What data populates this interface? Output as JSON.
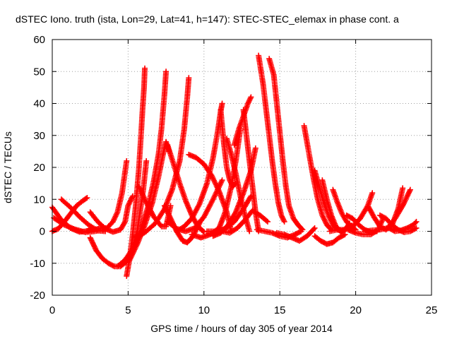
{
  "chart_data": {
    "type": "scatter",
    "title": "dSTEC Iono. truth (ista, Lon=29, Lat=41, h=147): STEC-STEC_elemax in phase cont. a",
    "xlabel": "GPS time / hours of day 305 of year 2014",
    "ylabel": "dSTEC  / TECUs",
    "xlim": [
      0,
      25
    ],
    "ylim": [
      -20,
      60
    ],
    "xticks": [
      0,
      5,
      10,
      15,
      20,
      25
    ],
    "yticks": [
      -20,
      -10,
      0,
      10,
      20,
      30,
      40,
      50,
      60
    ],
    "grid": true,
    "marker": "+",
    "color": "#ff0000",
    "series": [
      {
        "x": [
          0.0,
          0.6,
          1.2,
          1.8,
          2.2,
          2.6
        ],
        "y": [
          7.5,
          3.5,
          1.0,
          -0.2,
          0.0,
          0.5
        ]
      },
      {
        "x": [
          0.1,
          0.8,
          1.5,
          2.2,
          2.8,
          3.4
        ],
        "y": [
          4.2,
          2.0,
          0.6,
          -0.3,
          0.0,
          0.5
        ]
      },
      {
        "x": [
          0.0,
          0.4,
          0.8,
          1.2,
          1.6,
          2.0,
          2.3
        ],
        "y": [
          0.0,
          0.8,
          3.0,
          5.5,
          8.0,
          9.5,
          10.5
        ]
      },
      {
        "x": [
          0.6,
          1.2,
          1.8,
          2.4,
          3.0,
          3.5
        ],
        "y": [
          10.0,
          7.5,
          4.5,
          2.0,
          0.2,
          0.0
        ]
      },
      {
        "x": [
          2.5,
          3.0,
          3.5,
          4.0,
          4.5,
          4.8,
          5.0,
          5.3
        ],
        "y": [
          6.0,
          3.0,
          0.8,
          -0.2,
          0.5,
          3.0,
          8.0,
          11.0
        ]
      },
      {
        "x": [
          2.3,
          2.8,
          3.2,
          3.6,
          4.0,
          4.3,
          4.6,
          4.9
        ],
        "y": [
          0.0,
          0.5,
          1.0,
          1.0,
          3.0,
          6.0,
          12.0,
          22.0
        ]
      },
      {
        "x": [
          2.5,
          2.9,
          3.3,
          3.7,
          4.1,
          4.5,
          4.9,
          5.3,
          5.6,
          6.0,
          6.2
        ],
        "y": [
          -2.0,
          -6.0,
          -8.5,
          -10.0,
          -11.0,
          -11.0,
          -9.5,
          -6.0,
          0.0,
          13.0,
          22.0
        ]
      },
      {
        "x": [
          4.9,
          5.1,
          5.3,
          5.5,
          5.7,
          5.85,
          5.95,
          6.05,
          6.1
        ],
        "y": [
          -14.0,
          -8.5,
          -1.0,
          8.0,
          19.0,
          30.0,
          38.0,
          45.0,
          51.0
        ]
      },
      {
        "x": [
          4.3,
          4.8,
          5.3,
          5.8,
          6.3,
          6.7,
          7.0,
          7.2,
          7.4,
          7.5
        ],
        "y": [
          -11.0,
          -9.0,
          -5.5,
          0.0,
          7.5,
          16.0,
          24.0,
          32.0,
          43.0,
          50.0
        ]
      },
      {
        "x": [
          5.1,
          5.6,
          6.1,
          6.6,
          7.0,
          7.3,
          7.5,
          7.7
        ],
        "y": [
          -9.0,
          -4.0,
          2.0,
          9.0,
          17.0,
          24.0,
          28.0,
          25.0
        ]
      },
      {
        "x": [
          5.6,
          6.2,
          6.8,
          7.4,
          7.9,
          8.4,
          8.7,
          8.9,
          9.0
        ],
        "y": [
          -2.0,
          0.0,
          2.5,
          7.0,
          13.0,
          22.0,
          32.0,
          42.0,
          48.0
        ]
      },
      {
        "x": [
          5.7,
          6.2,
          6.7,
          7.2,
          7.5,
          7.8
        ],
        "y": [
          14.0,
          9.0,
          4.5,
          1.5,
          1.5,
          8.0
        ]
      },
      {
        "x": [
          7.4,
          7.8,
          8.2,
          8.6,
          8.9,
          9.2,
          9.5,
          9.8
        ],
        "y": [
          8.0,
          4.0,
          0.0,
          -3.0,
          -3.5,
          -2.0,
          0.5,
          3.5
        ]
      },
      {
        "x": [
          7.6,
          8.0,
          8.4,
          8.8,
          9.2,
          9.6,
          10.0
        ],
        "y": [
          27.0,
          21.0,
          15.0,
          9.5,
          5.0,
          1.5,
          -0.2
        ]
      },
      {
        "x": [
          8.2,
          8.7,
          9.2,
          9.7,
          10.2,
          10.6,
          10.9,
          11.1,
          11.2
        ],
        "y": [
          0.0,
          1.5,
          4.0,
          8.5,
          15.0,
          23.0,
          31.0,
          37.5,
          40.0
        ]
      },
      {
        "x": [
          9.0,
          9.5,
          10.0,
          10.5,
          11.0,
          11.5,
          11.8
        ],
        "y": [
          24.0,
          23.0,
          21.0,
          17.5,
          12.5,
          6.0,
          0.0
        ]
      },
      {
        "x": [
          7.6,
          8.2,
          8.8,
          9.4,
          10.0,
          10.6,
          11.2
        ],
        "y": [
          3.0,
          0.8,
          0.0,
          1.0,
          4.5,
          10.0,
          16.0
        ]
      },
      {
        "x": [
          9.2,
          9.8,
          10.4,
          11.0,
          11.4,
          11.8,
          12.1,
          12.4
        ],
        "y": [
          -1.0,
          -2.0,
          -1.0,
          1.0,
          6.0,
          14.0,
          22.0,
          32.0
        ]
      },
      {
        "x": [
          11.1,
          11.3,
          11.5,
          11.7,
          11.9,
          12.1
        ],
        "y": [
          38.0,
          28.0,
          20.0,
          16.0,
          14.0,
          15.0
        ]
      },
      {
        "x": [
          11.5,
          11.8,
          12.1,
          12.4,
          12.7,
          13.0
        ],
        "y": [
          29.0,
          24.0,
          18.0,
          11.0,
          5.0,
          0.0
        ]
      },
      {
        "x": [
          10.6,
          11.1,
          11.6,
          12.1,
          12.6,
          13.1,
          13.4
        ],
        "y": [
          -1.5,
          -0.5,
          2.0,
          6.0,
          12.0,
          19.0,
          26.0
        ]
      },
      {
        "x": [
          10.2,
          10.8,
          11.4,
          12.0,
          12.6,
          13.1
        ],
        "y": [
          0.0,
          0.0,
          0.8,
          3.0,
          7.0,
          11.0
        ]
      },
      {
        "x": [
          12.6,
          12.8,
          13.0,
          13.2,
          13.4,
          13.6
        ],
        "y": [
          38.0,
          30.0,
          22.0,
          14.0,
          6.0,
          0.0
        ]
      },
      {
        "x": [
          12.0,
          12.3,
          12.6,
          12.9,
          13.1
        ],
        "y": [
          27.0,
          32.0,
          36.0,
          40.0,
          42.0
        ]
      },
      {
        "x": [
          11.2,
          11.7,
          12.2,
          12.7,
          13.2,
          13.7,
          14.2
        ],
        "y": [
          0.0,
          -0.5,
          1.0,
          3.5,
          6.5,
          5.0,
          3.0
        ]
      },
      {
        "x": [
          13.6,
          13.9,
          14.1,
          14.3,
          14.5,
          14.7,
          14.9,
          15.1,
          15.3
        ],
        "y": [
          55.0,
          46.0,
          38.0,
          30.0,
          22.0,
          15.0,
          9.0,
          5.0,
          3.0
        ]
      },
      {
        "x": [
          14.3,
          14.6,
          14.8,
          15.0,
          15.2,
          15.4,
          15.6,
          15.9,
          16.2,
          16.5
        ],
        "y": [
          54.0,
          49.0,
          40.0,
          31.0,
          22.0,
          14.0,
          8.0,
          4.0,
          2.0,
          0.5
        ]
      },
      {
        "x": [
          13.5,
          14.0,
          14.5,
          15.0,
          15.5,
          16.0,
          16.4
        ],
        "y": [
          0.5,
          0.0,
          -0.5,
          -1.5,
          -2.0,
          -1.0,
          0.0
        ]
      },
      {
        "x": [
          14.8,
          15.3,
          15.8,
          16.3,
          16.8,
          17.3
        ],
        "y": [
          -0.5,
          -1.0,
          -2.0,
          -3.0,
          -1.5,
          1.0
        ]
      },
      {
        "x": [
          16.6,
          16.9,
          17.2,
          17.5,
          17.8,
          18.1,
          18.4
        ],
        "y": [
          33.0,
          25.0,
          17.0,
          10.0,
          5.0,
          2.0,
          0.5
        ]
      },
      {
        "x": [
          17.3,
          17.6,
          17.9,
          18.2,
          18.5,
          18.8,
          19.1
        ],
        "y": [
          19.0,
          14.0,
          9.0,
          5.0,
          2.0,
          0.5,
          0.0
        ]
      },
      {
        "x": [
          17.3,
          17.7,
          18.1,
          18.5,
          18.9,
          19.3
        ],
        "y": [
          -1.5,
          -3.0,
          -4.0,
          -3.5,
          -2.0,
          -1.0
        ]
      },
      {
        "x": [
          17.8,
          18.1,
          18.4,
          18.7,
          19.0,
          19.3,
          19.6
        ],
        "y": [
          16.0,
          10.0,
          5.0,
          1.5,
          0.0,
          0.5,
          2.5
        ]
      },
      {
        "x": [
          18.5,
          18.8,
          19.1,
          19.4,
          19.7,
          20.0
        ],
        "y": [
          13.0,
          9.0,
          5.5,
          3.0,
          1.5,
          0.5
        ]
      },
      {
        "x": [
          18.3,
          18.8,
          19.3,
          19.8,
          20.3,
          20.8,
          21.1
        ],
        "y": [
          0.0,
          0.5,
          0.5,
          1.5,
          4.0,
          8.0,
          12.0
        ]
      },
      {
        "x": [
          19.4,
          19.8,
          20.2,
          20.6,
          21.0,
          21.4
        ],
        "y": [
          5.0,
          4.0,
          2.0,
          0.5,
          -0.3,
          0.0
        ]
      },
      {
        "x": [
          19.5,
          20.0,
          20.5,
          21.0,
          21.5,
          21.8
        ],
        "y": [
          0.5,
          -0.5,
          -1.0,
          -1.0,
          0.5,
          4.0
        ]
      },
      {
        "x": [
          20.8,
          21.2,
          21.6,
          22.0,
          22.4,
          22.8,
          23.1
        ],
        "y": [
          8.0,
          4.5,
          1.5,
          0.5,
          2.0,
          7.0,
          13.5
        ]
      },
      {
        "x": [
          20.6,
          21.1,
          21.6,
          22.1,
          22.6,
          23.1,
          23.6
        ],
        "y": [
          0.0,
          0.3,
          0.5,
          1.0,
          4.0,
          8.0,
          13.0
        ]
      },
      {
        "x": [
          21.6,
          22.0,
          22.4,
          22.8,
          23.2,
          23.6,
          24.0
        ],
        "y": [
          5.0,
          4.0,
          2.0,
          0.5,
          -0.3,
          0.0,
          1.0
        ]
      },
      {
        "x": [
          22.2,
          22.6,
          23.0,
          23.4,
          23.8,
          24.0
        ],
        "y": [
          1.0,
          0.0,
          0.3,
          1.0,
          2.0,
          3.0
        ]
      }
    ]
  }
}
